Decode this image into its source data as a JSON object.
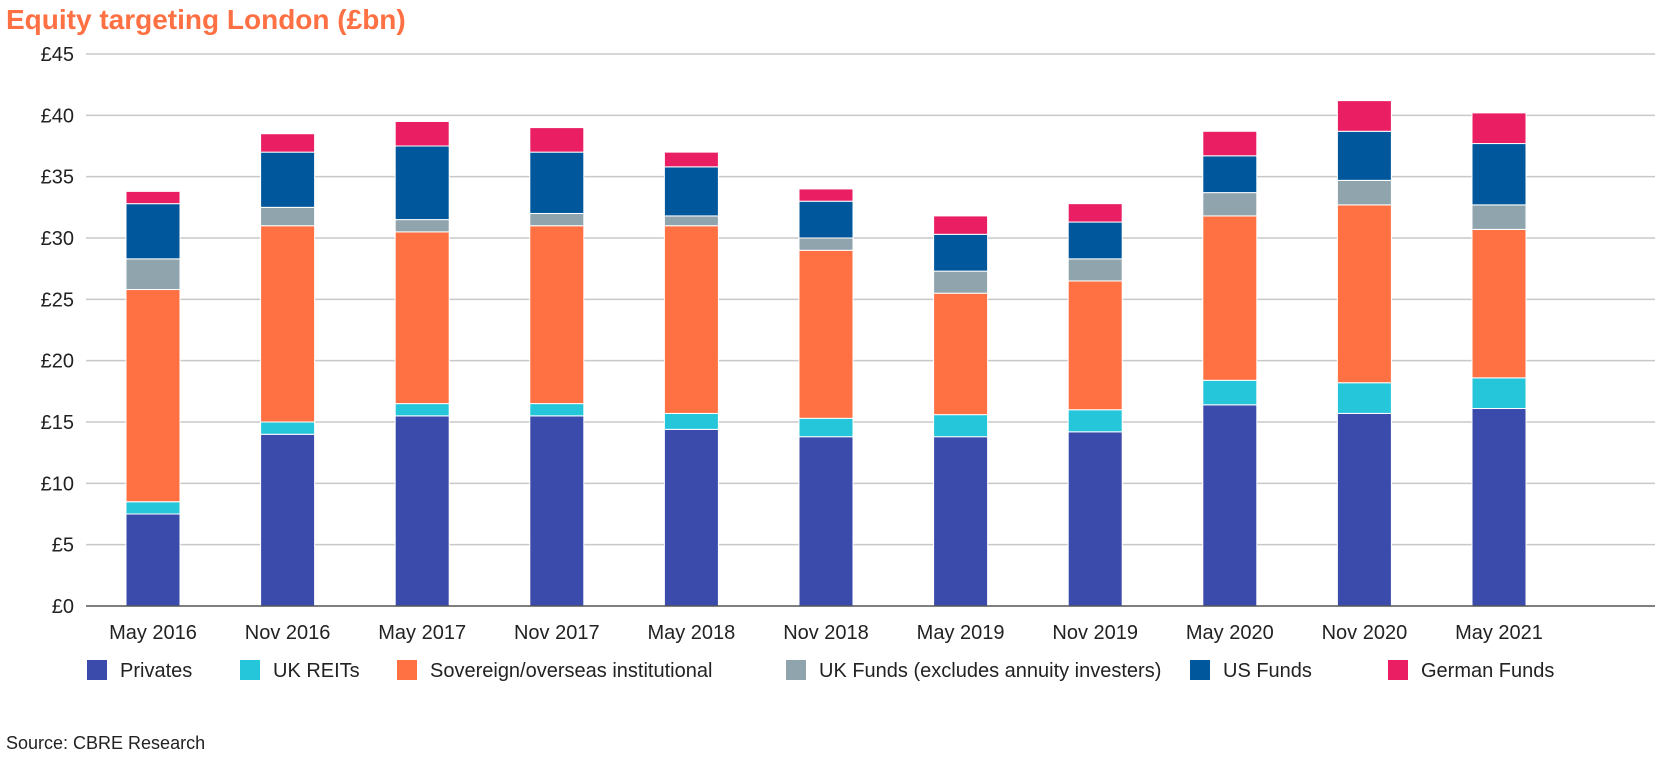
{
  "chart_data": {
    "type": "bar",
    "stacked": true,
    "title": "Equity targeting London (£bn)",
    "source": "Source: CBRE Research",
    "ylim": [
      0,
      45
    ],
    "y_ticks": [
      "£0",
      "£5",
      "£10",
      "£15",
      "£20",
      "£25",
      "£30",
      "£35",
      "£40",
      "£45"
    ],
    "grid": true,
    "legend_position": "bottom",
    "categories": [
      "May 2016",
      "Nov 2016",
      "May 2017",
      "Nov 2017",
      "May 2018",
      "Nov 2018",
      "May 2019",
      "Nov 2019",
      "May 2020",
      "Nov 2020",
      "May 2021"
    ],
    "series": [
      {
        "name": "Privates",
        "color": "#3b4bab",
        "values": [
          7.5,
          14.0,
          15.5,
          15.5,
          14.4,
          13.8,
          13.8,
          14.2,
          16.4,
          15.7,
          16.1
        ]
      },
      {
        "name": "UK REITs",
        "color": "#26c6da",
        "values": [
          1.0,
          1.0,
          1.0,
          1.0,
          1.3,
          1.5,
          1.8,
          1.8,
          2.0,
          2.5,
          2.5
        ]
      },
      {
        "name": "Sovereign/overseas institutional",
        "color": "#ff7043",
        "values": [
          17.3,
          16.0,
          14.0,
          14.5,
          15.3,
          13.7,
          9.9,
          10.5,
          13.4,
          14.5,
          12.1
        ]
      },
      {
        "name": "UK Funds (excludes annuity investers)",
        "color": "#90a4ae",
        "values": [
          2.5,
          1.5,
          1.0,
          1.0,
          0.8,
          1.0,
          1.8,
          1.8,
          1.9,
          2.0,
          2.0
        ]
      },
      {
        "name": "US Funds",
        "color": "#01579b",
        "values": [
          4.5,
          4.5,
          6.0,
          5.0,
          4.0,
          3.0,
          3.0,
          3.0,
          3.0,
          4.0,
          5.0
        ]
      },
      {
        "name": "German Funds",
        "color": "#e91e63",
        "values": [
          1.0,
          1.5,
          2.0,
          2.0,
          1.2,
          1.0,
          1.5,
          1.5,
          2.0,
          2.5,
          2.5
        ]
      }
    ]
  }
}
